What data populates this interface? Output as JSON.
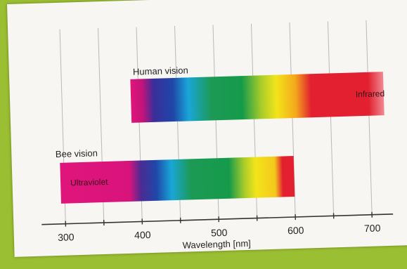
{
  "figure": {
    "x_axis": {
      "label": "Wavelength [nm]",
      "min": 300,
      "max": 700,
      "range": [
        290,
        720
      ],
      "tick_labels": [
        "300",
        "400",
        "500",
        "600",
        "700"
      ],
      "gridlines": [
        300,
        350,
        400,
        450,
        500,
        550,
        600,
        650,
        700
      ]
    },
    "bands": [
      {
        "name": "Human vision",
        "start": 390,
        "end": 720,
        "inner_label": "Infrared",
        "stops": [
          {
            "nm": 390,
            "color": "#e0157b"
          },
          {
            "nm": 405,
            "color": "#c3137a"
          },
          {
            "nm": 420,
            "color": "#3a2e9a"
          },
          {
            "nm": 445,
            "color": "#1f47a8"
          },
          {
            "nm": 465,
            "color": "#19a6d8"
          },
          {
            "nm": 495,
            "color": "#1c9a55"
          },
          {
            "nm": 535,
            "color": "#159a4a"
          },
          {
            "nm": 560,
            "color": "#a9cc2a"
          },
          {
            "nm": 580,
            "color": "#f3e41a"
          },
          {
            "nm": 605,
            "color": "#f4a81c"
          },
          {
            "nm": 625,
            "color": "#e2202f"
          },
          {
            "nm": 700,
            "color": "#e2202f"
          },
          {
            "nm": 720,
            "color": "#f08a92"
          }
        ]
      },
      {
        "name": "Bee vision",
        "start": 295,
        "end": 600,
        "inner_label": "Ultraviolet",
        "stops": [
          {
            "nm": 295,
            "color": "#e0157b"
          },
          {
            "nm": 385,
            "color": "#d8147c"
          },
          {
            "nm": 400,
            "color": "#4b2b93"
          },
          {
            "nm": 420,
            "color": "#1f47a8"
          },
          {
            "nm": 440,
            "color": "#19a6d8"
          },
          {
            "nm": 465,
            "color": "#1c9a55"
          },
          {
            "nm": 515,
            "color": "#159a4a"
          },
          {
            "nm": 535,
            "color": "#a9cc2a"
          },
          {
            "nm": 550,
            "color": "#f3e41a"
          },
          {
            "nm": 575,
            "color": "#f4c81c"
          },
          {
            "nm": 585,
            "color": "#e2202f"
          },
          {
            "nm": 600,
            "color": "#e2202f"
          }
        ]
      }
    ]
  }
}
